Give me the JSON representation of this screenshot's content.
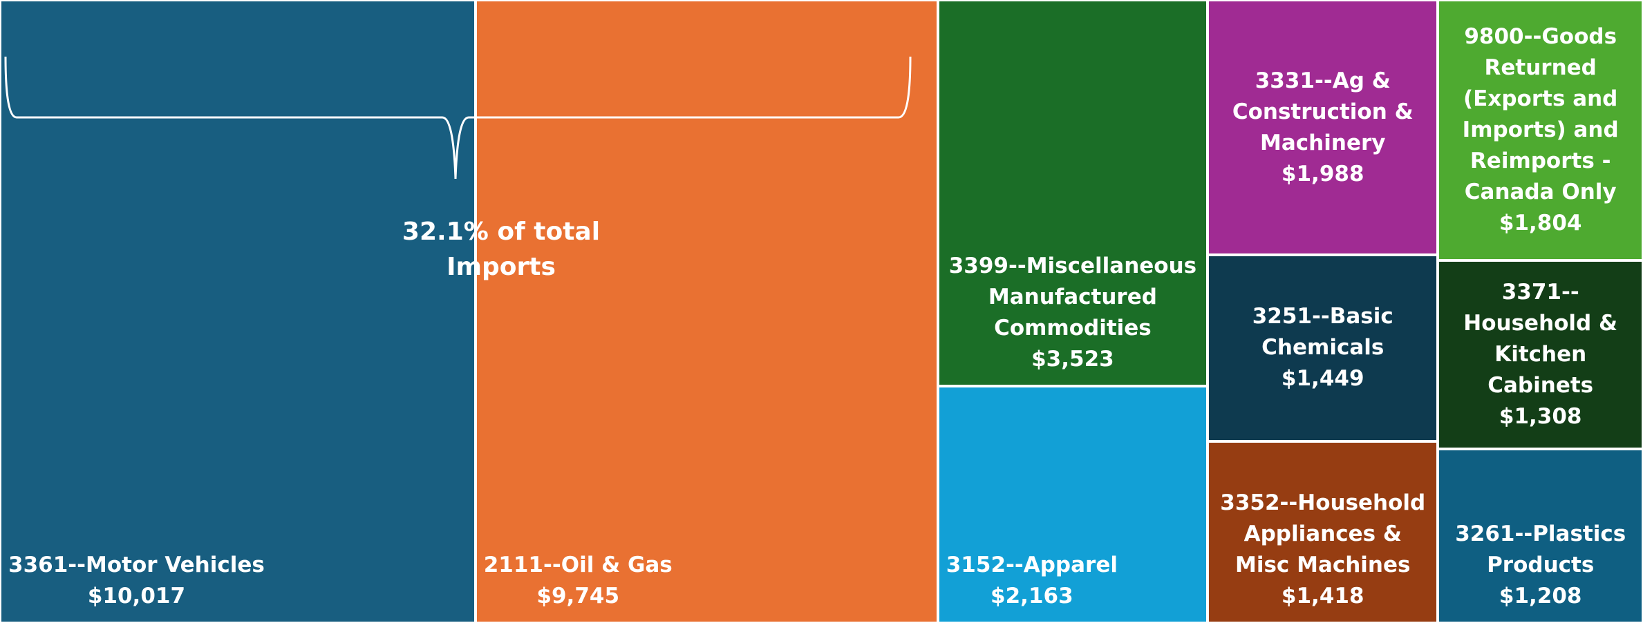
{
  "chart_data": {
    "type": "treemap",
    "categories": [
      "3361--Motor Vehicles",
      "2111--Oil & Gas",
      "3399--Miscellaneous Manufactured Commodities",
      "3152--Apparel",
      "3331--Ag & Construction & Machinery",
      "9800--Goods Returned (Exports and Imports) and Reimports - Canada Only",
      "3251--Basic Chemicals",
      "3352--Household Appliances & Misc Machines",
      "3371--Household & Kitchen Cabinets",
      "3261--Plastics Products"
    ],
    "values": [
      10017,
      9745,
      3523,
      2163,
      1988,
      1804,
      1449,
      1418,
      1308,
      1208
    ],
    "value_labels": [
      "$10,017",
      "$9,745",
      "$3,523",
      "$2,163",
      "$1,988",
      "$1,804",
      "$1,449",
      "$1,418",
      "$1,308",
      "$1,208"
    ],
    "colors": [
      "#185e80",
      "#e97132",
      "#1b6e27",
      "#12a0d6",
      "#a02b93",
      "#4eaa30",
      "#0e3a4f",
      "#963d12",
      "#133e17",
      "#0f5f82"
    ],
    "annotation": "32.1% of total Imports"
  }
}
